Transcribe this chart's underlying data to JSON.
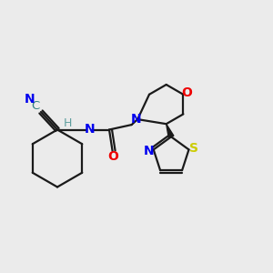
{
  "bg_color": "#ebebeb",
  "bond_color": "#1a1a1a",
  "atom_colors": {
    "N": "#0000ee",
    "O": "#ee0000",
    "S": "#cccc00",
    "C_cyan": "#2f7f7f",
    "H": "#5f9f9f"
  },
  "figsize": [
    3.0,
    3.0
  ],
  "dpi": 100
}
